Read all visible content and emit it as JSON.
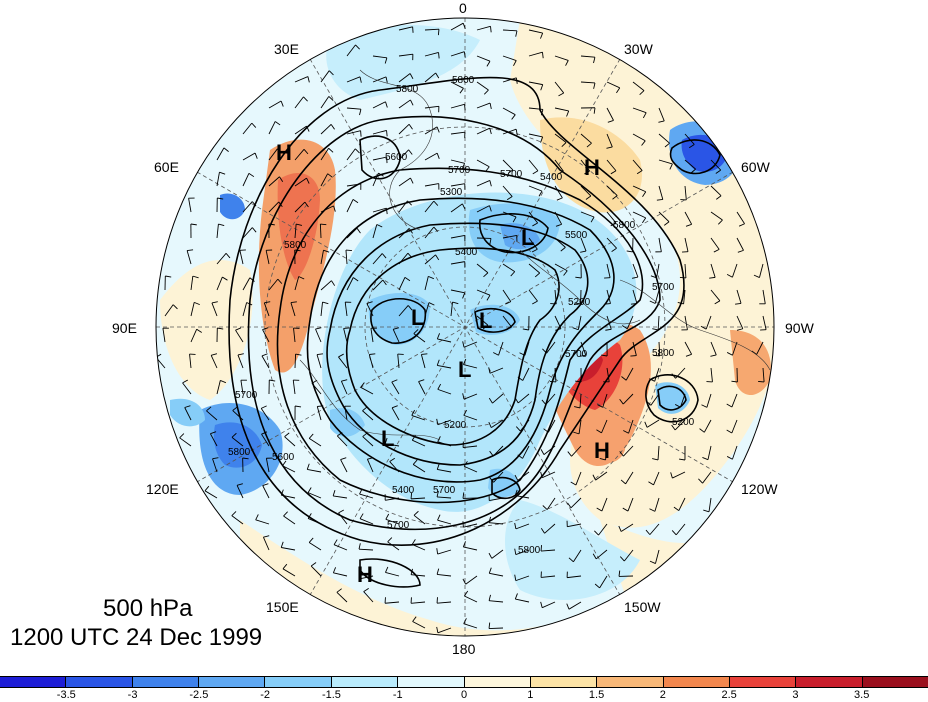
{
  "map": {
    "title_level": "500 hPa",
    "title_time": "1200 UTC 24 Dec 1999",
    "longitude_labels": {
      "lon_0": "0",
      "lon_30w": "30W",
      "lon_60w": "60W",
      "lon_90w": "90W",
      "lon_120w": "120W",
      "lon_150w": "150W",
      "lon_180": "180",
      "lon_150e": "150E",
      "lon_120e": "120E",
      "lon_90e": "90E",
      "lon_60e": "60E",
      "lon_30e": "30E"
    },
    "pressure_centers": {
      "h_ural": "H",
      "h_atlantic": "H",
      "h_namerica": "H",
      "h_pacific": "H",
      "l_canada": "L",
      "l_siberia": "L",
      "l_arctic": "L",
      "l_pole": "L",
      "l_eastasia": "L"
    },
    "contour_labels": {
      "c1": "5800",
      "c2": "5800",
      "c3": "5700",
      "c4": "5700",
      "c5": "5800",
      "c6": "5800",
      "c7": "5700",
      "c8": "5600",
      "c9": "5400",
      "c10": "5500",
      "c11": "5400",
      "c12": "5300",
      "c13": "5200",
      "c14": "5700",
      "c15": "5800",
      "c16": "5600",
      "c17": "5700",
      "c18": "5800",
      "c19": "5700",
      "c20": "5800",
      "c21": "5700",
      "c22": "5400",
      "c23": "5200",
      "c24": "5200"
    },
    "colorbar": {
      "ticks": [
        "-3.5",
        "-3",
        "-2.5",
        "-2",
        "-1.5",
        "-1",
        "0",
        "1",
        "1.5",
        "2",
        "2.5",
        "3",
        "3.5"
      ],
      "colors": [
        "#1d1dd6",
        "#2a55e6",
        "#3f82ec",
        "#5fa8f2",
        "#86cdf8",
        "#b9ebfc",
        "#e2f8fd",
        "#fdf6dc",
        "#fce3a6",
        "#f8b878",
        "#f2874e",
        "#e8423a",
        "#c81e2c",
        "#9a0f1d"
      ]
    }
  }
}
